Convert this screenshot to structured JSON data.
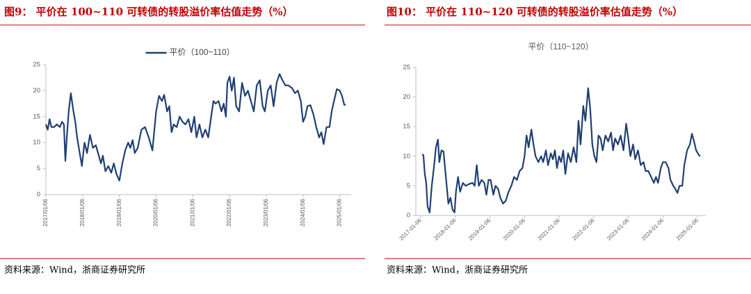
{
  "chart_data": [
    {
      "type": "line",
      "caption": "图9：  平价在 100~110 可转债的转股溢价率估值走势（%）",
      "source": "资料来源：Wind，浙商证券研究所",
      "xlim": [
        2017,
        2025.31
      ],
      "xticks": [
        {
          "value": 2017,
          "label": "2017/01/06"
        },
        {
          "value": 2018,
          "label": "2018/01/06"
        },
        {
          "value": 2019,
          "label": "2019/01/06"
        },
        {
          "value": 2020,
          "label": "2020/01/06"
        },
        {
          "value": 2021,
          "label": "2021/01/06"
        },
        {
          "value": 2022,
          "label": "2022/01/06"
        },
        {
          "value": 2023,
          "label": "2023/01/06"
        },
        {
          "value": 2024,
          "label": "2024/01/06"
        },
        {
          "value": 2025,
          "label": "2025/01/06"
        }
      ],
      "ylim": [
        0,
        25
      ],
      "yticks": [
        0,
        5,
        10,
        15,
        20,
        25
      ],
      "x": [
        2017.0,
        2017.05,
        2017.1,
        2017.15,
        2017.22,
        2017.3,
        2017.38,
        2017.44,
        2017.49,
        2017.53,
        2017.57,
        2017.62,
        2017.68,
        2017.75,
        2017.8,
        2017.85,
        2017.92,
        2017.98,
        2018.05,
        2018.12,
        2018.2,
        2018.28,
        2018.36,
        2018.44,
        2018.5,
        2018.55,
        2018.62,
        2018.7,
        2018.78,
        2018.85,
        2018.92,
        2019.0,
        2019.08,
        2019.16,
        2019.24,
        2019.3,
        2019.36,
        2019.42,
        2019.5,
        2019.6,
        2019.7,
        2019.8,
        2019.9,
        2020.0,
        2020.08,
        2020.16,
        2020.22,
        2020.3,
        2020.36,
        2020.42,
        2020.48,
        2020.56,
        2020.64,
        2020.72,
        2020.8,
        2020.88,
        2020.96,
        2021.04,
        2021.1,
        2021.18,
        2021.26,
        2021.34,
        2021.42,
        2021.5,
        2021.56,
        2021.62,
        2021.7,
        2021.78,
        2021.84,
        2021.9,
        2021.94,
        2022.0,
        2022.06,
        2022.12,
        2022.18,
        2022.26,
        2022.34,
        2022.42,
        2022.5,
        2022.58,
        2022.66,
        2022.74,
        2022.82,
        2022.9,
        2022.96,
        2023.04,
        2023.12,
        2023.2,
        2023.28,
        2023.36,
        2023.44,
        2023.52,
        2023.6,
        2023.7,
        2023.78,
        2023.86,
        2023.94,
        2024.0,
        2024.06,
        2024.12,
        2024.2,
        2024.28,
        2024.36,
        2024.44,
        2024.5,
        2024.56,
        2024.64,
        2024.72,
        2024.78,
        2024.86,
        2024.92,
        2025.0,
        2025.06,
        2025.12,
        2025.16
      ],
      "series": [
        {
          "name": "平价（100~110）",
          "color": "#1f3f73",
          "values": [
            13.5,
            12.5,
            14.5,
            13,
            13,
            13.5,
            13,
            14,
            13.5,
            6.5,
            11,
            16,
            19.5,
            16,
            14,
            11,
            8,
            5.5,
            10,
            8,
            11.5,
            9,
            9.5,
            7.5,
            6,
            7.5,
            4.5,
            5.5,
            4.2,
            6,
            4,
            2.7,
            6,
            8.5,
            10,
            9,
            10.5,
            8,
            9,
            12.5,
            13,
            11,
            8.5,
            16,
            19,
            18,
            19.2,
            16,
            17,
            12,
            13.5,
            13,
            15,
            14,
            13.5,
            14.5,
            12,
            15,
            11,
            13.5,
            11,
            12.5,
            11,
            15,
            18,
            17.5,
            18,
            16,
            17.5,
            15,
            21.5,
            22.7,
            20,
            22.5,
            17,
            16,
            21.5,
            19,
            20,
            18,
            16,
            21,
            22,
            17,
            16,
            20,
            21,
            17,
            21.5,
            23.2,
            22,
            21,
            21,
            20.5,
            19.5,
            20,
            18,
            14,
            15,
            17,
            17.2,
            15.5,
            13,
            11,
            12,
            9.7,
            13,
            13,
            16,
            18.5,
            20.3,
            20,
            19,
            17.3,
            17.2
          ]
        }
      ]
    },
    {
      "type": "line",
      "caption": "图10：  平价在 110~120 可转债的转股溢价率估值走势（%）",
      "source": "资料来源：Wind，浙商证券研究所",
      "title": "平价（110~120）",
      "color": "#1f3f73",
      "xlim": [
        2016.86,
        2025.24
      ],
      "xticks": [
        {
          "value": 2017,
          "label": "2017-01-06"
        },
        {
          "value": 2018,
          "label": "2018-01-06"
        },
        {
          "value": 2019,
          "label": "2019-01-06"
        },
        {
          "value": 2020,
          "label": "2020-01-06"
        },
        {
          "value": 2021,
          "label": "2021-01-06"
        },
        {
          "value": 2022,
          "label": "2022-01-06"
        },
        {
          "value": 2023,
          "label": "2023-01-06"
        },
        {
          "value": 2024,
          "label": "2024-01-06"
        },
        {
          "value": 2025,
          "label": "2025-01-06"
        }
      ],
      "ylim": [
        0,
        25
      ],
      "yticks": [
        0,
        5,
        10,
        15,
        20,
        25
      ],
      "x": [
        2017.04,
        2017.08,
        2017.12,
        2017.16,
        2017.2,
        2017.26,
        2017.32,
        2017.38,
        2017.44,
        2017.5,
        2017.54,
        2017.6,
        2017.66,
        2017.72,
        2017.8,
        2017.86,
        2017.92,
        2017.98,
        2018.02,
        2018.08,
        2018.14,
        2018.22,
        2018.3,
        2018.4,
        2018.5,
        2018.56,
        2018.62,
        2018.68,
        2018.76,
        2018.84,
        2018.9,
        2018.96,
        2019.02,
        2019.1,
        2019.16,
        2019.24,
        2019.3,
        2019.38,
        2019.46,
        2019.54,
        2019.62,
        2019.7,
        2019.78,
        2019.86,
        2019.94,
        2020.0,
        2020.06,
        2020.12,
        2020.2,
        2020.26,
        2020.32,
        2020.4,
        2020.48,
        2020.54,
        2020.62,
        2020.68,
        2020.76,
        2020.82,
        2020.88,
        2020.94,
        2021.0,
        2021.06,
        2021.12,
        2021.18,
        2021.26,
        2021.34,
        2021.42,
        2021.5,
        2021.56,
        2021.62,
        2021.7,
        2021.76,
        2021.84,
        2021.9,
        2021.96,
        2022.02,
        2022.08,
        2022.14,
        2022.2,
        2022.26,
        2022.34,
        2022.42,
        2022.5,
        2022.56,
        2022.62,
        2022.7,
        2022.78,
        2022.86,
        2022.94,
        2023.0,
        2023.06,
        2023.14,
        2023.2,
        2023.28,
        2023.36,
        2023.44,
        2023.5,
        2023.58,
        2023.66,
        2023.74,
        2023.8,
        2023.86,
        2023.94,
        2024.0,
        2024.08,
        2024.16,
        2024.22,
        2024.3,
        2024.36,
        2024.42,
        2024.48,
        2024.56,
        2024.62,
        2024.7,
        2024.78,
        2024.84,
        2024.9,
        2024.96,
        2025.04,
        2025.08
      ],
      "values": [
        10.3,
        10.2,
        7,
        5.5,
        1.5,
        0.5,
        5,
        8,
        11.5,
        12.8,
        9,
        11,
        10.8,
        7,
        2,
        3,
        1,
        0.5,
        4,
        6.5,
        4,
        5.5,
        5,
        5.3,
        5.5,
        5,
        8.5,
        5,
        6,
        5.5,
        3.5,
        6,
        6,
        3.5,
        5,
        4.5,
        3,
        2,
        2.5,
        4,
        5,
        6.5,
        6,
        7.5,
        8,
        10,
        13.5,
        11.5,
        14.5,
        12,
        10,
        9,
        10,
        9,
        11,
        8.5,
        10.5,
        9.5,
        11,
        8,
        10,
        9,
        11,
        7,
        10.5,
        9,
        11.5,
        9,
        16,
        12,
        18.5,
        16,
        21.5,
        18,
        12,
        10,
        9,
        13.5,
        13,
        11,
        13.5,
        12.5,
        14,
        11,
        13,
        12,
        13.5,
        11,
        15.5,
        13,
        10,
        12,
        9.5,
        11,
        8.5,
        9,
        7.5,
        7.5,
        6.5,
        5.5,
        6.5,
        5.5,
        8,
        9,
        9,
        8,
        6,
        5,
        4.5,
        3.8,
        5,
        5,
        8.5,
        11,
        12,
        13.8,
        12.5,
        11,
        10.2,
        10
      ]
    }
  ]
}
